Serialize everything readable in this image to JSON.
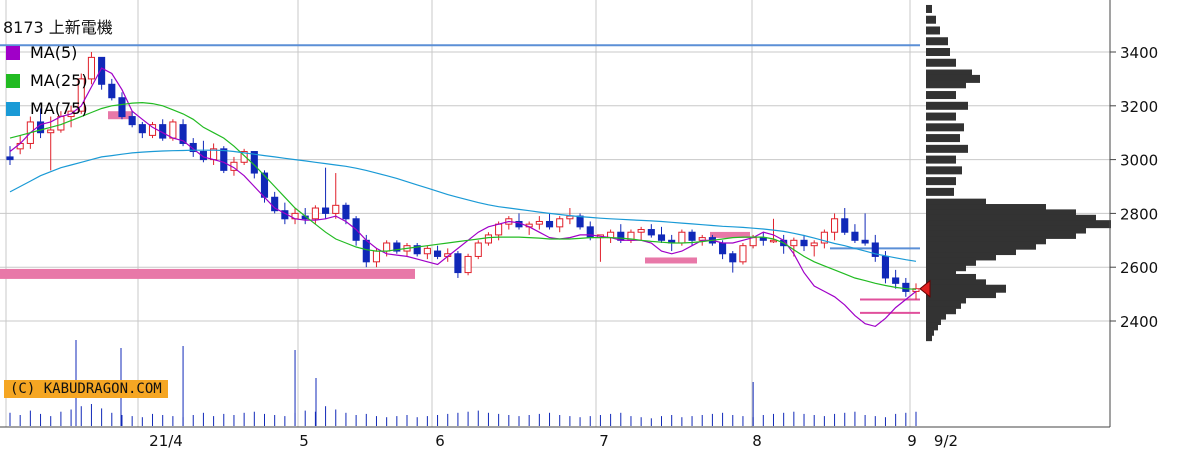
{
  "title": "8173 上新電機",
  "legend": [
    {
      "label": "MA(5)",
      "color": "#a000c8"
    },
    {
      "label": "MA(25)",
      "color": "#22bb22"
    },
    {
      "label": "MA(75)",
      "color": "#1a9ad6"
    }
  ],
  "copyright": "(C) KABUDRAGON.COM",
  "chart_data": {
    "type": "candlestick",
    "y_axis": {
      "ticks": [
        2400,
        2600,
        2800,
        3000,
        3200,
        3400
      ],
      "min": 2250,
      "max": 3600
    },
    "x_axis": {
      "ticks": [
        "21/4",
        "5",
        "6",
        "7",
        "8",
        "9",
        "9/2"
      ]
    },
    "colors": {
      "up": "#e0202a",
      "down": "#1028b8",
      "ma5": "#a000c8",
      "ma25": "#22bb22",
      "ma75": "#1a9ad6",
      "grid": "#c8c8c8",
      "volume": "#1028b8",
      "profile": "#333333"
    },
    "series": [
      {
        "name": "MA(5)",
        "values": [
          3030,
          3060,
          3100,
          3130,
          3140,
          3160,
          3170,
          3200,
          3270,
          3340,
          3320,
          3260,
          3180,
          3150,
          3120,
          3100,
          3080,
          3070,
          3040,
          3010,
          3000,
          2990,
          2970,
          2940,
          2900,
          2860,
          2820,
          2800,
          2780,
          2775,
          2775,
          2780,
          2790,
          2770,
          2740,
          2700,
          2670,
          2650,
          2645,
          2640,
          2630,
          2620,
          2610,
          2640,
          2670,
          2700,
          2730,
          2750,
          2760,
          2770,
          2765,
          2750,
          2730,
          2710,
          2705,
          2710,
          2720,
          2720,
          2715,
          2710,
          2700,
          2700,
          2700,
          2690,
          2660,
          2650,
          2660,
          2680,
          2700,
          2700,
          2690,
          2690,
          2700,
          2710,
          2730,
          2720,
          2700,
          2650,
          2580,
          2530,
          2510,
          2490,
          2460,
          2420,
          2390,
          2380,
          2410,
          2450,
          2480,
          2510
        ]
      },
      {
        "name": "MA(25)",
        "values": [
          3080,
          3090,
          3100,
          3110,
          3120,
          3130,
          3145,
          3160,
          3175,
          3190,
          3200,
          3205,
          3210,
          3212,
          3208,
          3200,
          3185,
          3170,
          3150,
          3120,
          3100,
          3080,
          3050,
          3015,
          2980,
          2940,
          2900,
          2860,
          2820,
          2790,
          2760,
          2730,
          2705,
          2690,
          2675,
          2665,
          2660,
          2660,
          2665,
          2670,
          2675,
          2680,
          2685,
          2690,
          2695,
          2700,
          2705,
          2710,
          2712,
          2712,
          2712,
          2710,
          2708,
          2705,
          2705,
          2705,
          2707,
          2710,
          2710,
          2710,
          2708,
          2705,
          2700,
          2696,
          2693,
          2690,
          2690,
          2692,
          2695,
          2700,
          2705,
          2710,
          2712,
          2712,
          2712,
          2705,
          2690,
          2665,
          2640,
          2620,
          2605,
          2590,
          2575,
          2560,
          2550,
          2540,
          2532,
          2525,
          2520,
          2518
        ]
      },
      {
        "name": "MA(75)",
        "values": [
          2880,
          2900,
          2920,
          2940,
          2955,
          2970,
          2980,
          2990,
          3000,
          3010,
          3015,
          3020,
          3025,
          3028,
          3030,
          3032,
          3033,
          3034,
          3035,
          3035,
          3035,
          3034,
          3030,
          3025,
          3020,
          3015,
          3010,
          3005,
          3000,
          2995,
          2990,
          2985,
          2980,
          2975,
          2968,
          2960,
          2950,
          2940,
          2930,
          2918,
          2906,
          2894,
          2882,
          2870,
          2860,
          2850,
          2840,
          2832,
          2825,
          2820,
          2815,
          2810,
          2805,
          2800,
          2796,
          2792,
          2788,
          2785,
          2782,
          2780,
          2778,
          2776,
          2774,
          2772,
          2770,
          2767,
          2764,
          2761,
          2758,
          2755,
          2752,
          2750,
          2748,
          2745,
          2742,
          2738,
          2733,
          2726,
          2718,
          2708,
          2698,
          2688,
          2680,
          2670,
          2660,
          2650,
          2642,
          2635,
          2628,
          2622
        ]
      }
    ],
    "ohlc": [
      [
        3010,
        3050,
        2980,
        3000
      ],
      [
        3040,
        3090,
        3020,
        3060
      ],
      [
        3060,
        3160,
        3040,
        3140
      ],
      [
        3140,
        3190,
        3080,
        3100
      ],
      [
        3100,
        3160,
        2960,
        3110
      ],
      [
        3110,
        3180,
        3100,
        3160
      ],
      [
        3160,
        3200,
        3120,
        3180
      ],
      [
        3180,
        3320,
        3170,
        3300
      ],
      [
        3300,
        3400,
        3280,
        3380
      ],
      [
        3380,
        3380,
        3260,
        3280
      ],
      [
        3280,
        3300,
        3220,
        3230
      ],
      [
        3230,
        3250,
        3150,
        3160
      ],
      [
        3160,
        3180,
        3120,
        3130
      ],
      [
        3130,
        3140,
        3080,
        3100
      ],
      [
        3090,
        3140,
        3080,
        3130
      ],
      [
        3130,
        3150,
        3070,
        3080
      ],
      [
        3080,
        3150,
        3070,
        3140
      ],
      [
        3130,
        3150,
        3050,
        3060
      ],
      [
        3060,
        3080,
        3010,
        3030
      ],
      [
        3030,
        3070,
        2990,
        3000
      ],
      [
        3000,
        3060,
        2980,
        3040
      ],
      [
        3040,
        3050,
        2950,
        2960
      ],
      [
        2960,
        3010,
        2940,
        2990
      ],
      [
        2990,
        3040,
        2980,
        3030
      ],
      [
        3030,
        3030,
        2930,
        2950
      ],
      [
        2950,
        2960,
        2840,
        2860
      ],
      [
        2860,
        2880,
        2800,
        2810
      ],
      [
        2810,
        2840,
        2760,
        2780
      ],
      [
        2780,
        2820,
        2760,
        2800
      ],
      [
        2790,
        2820,
        2760,
        2780
      ],
      [
        2780,
        2830,
        2760,
        2820
      ],
      [
        2820,
        2970,
        2780,
        2800
      ],
      [
        2800,
        2950,
        2780,
        2830
      ],
      [
        2830,
        2840,
        2760,
        2780
      ],
      [
        2780,
        2790,
        2680,
        2700
      ],
      [
        2700,
        2720,
        2600,
        2620
      ],
      [
        2620,
        2670,
        2600,
        2660
      ],
      [
        2660,
        2700,
        2640,
        2690
      ],
      [
        2690,
        2700,
        2650,
        2660
      ],
      [
        2660,
        2690,
        2640,
        2680
      ],
      [
        2680,
        2690,
        2640,
        2650
      ],
      [
        2650,
        2680,
        2630,
        2670
      ],
      [
        2660,
        2680,
        2630,
        2640
      ],
      [
        2640,
        2670,
        2620,
        2650
      ],
      [
        2650,
        2660,
        2560,
        2580
      ],
      [
        2580,
        2650,
        2570,
        2640
      ],
      [
        2640,
        2700,
        2630,
        2690
      ],
      [
        2690,
        2730,
        2680,
        2720
      ],
      [
        2720,
        2770,
        2700,
        2760
      ],
      [
        2760,
        2790,
        2740,
        2780
      ],
      [
        2770,
        2800,
        2740,
        2750
      ],
      [
        2750,
        2770,
        2720,
        2760
      ],
      [
        2760,
        2790,
        2740,
        2770
      ],
      [
        2770,
        2800,
        2740,
        2750
      ],
      [
        2750,
        2790,
        2730,
        2780
      ],
      [
        2780,
        2820,
        2760,
        2790
      ],
      [
        2790,
        2800,
        2740,
        2750
      ],
      [
        2750,
        2770,
        2700,
        2710
      ],
      [
        2710,
        2720,
        2620,
        2720
      ],
      [
        2710,
        2740,
        2690,
        2730
      ],
      [
        2730,
        2760,
        2690,
        2700
      ],
      [
        2700,
        2740,
        2690,
        2730
      ],
      [
        2730,
        2750,
        2700,
        2740
      ],
      [
        2740,
        2760,
        2710,
        2720
      ],
      [
        2720,
        2750,
        2690,
        2700
      ],
      [
        2700,
        2720,
        2660,
        2690
      ],
      [
        2690,
        2740,
        2680,
        2730
      ],
      [
        2730,
        2740,
        2680,
        2700
      ],
      [
        2700,
        2720,
        2680,
        2710
      ],
      [
        2710,
        2720,
        2680,
        2690
      ],
      [
        2690,
        2700,
        2630,
        2650
      ],
      [
        2650,
        2660,
        2580,
        2620
      ],
      [
        2620,
        2690,
        2610,
        2680
      ],
      [
        2680,
        2720,
        2670,
        2710
      ],
      [
        2710,
        2730,
        2680,
        2700
      ],
      [
        2700,
        2780,
        2690,
        2700
      ],
      [
        2700,
        2720,
        2650,
        2680
      ],
      [
        2680,
        2710,
        2640,
        2700
      ],
      [
        2700,
        2720,
        2660,
        2680
      ],
      [
        2680,
        2700,
        2640,
        2690
      ],
      [
        2690,
        2740,
        2670,
        2730
      ],
      [
        2730,
        2800,
        2700,
        2780
      ],
      [
        2780,
        2820,
        2720,
        2730
      ],
      [
        2730,
        2760,
        2690,
        2700
      ],
      [
        2700,
        2800,
        2680,
        2690
      ],
      [
        2690,
        2720,
        2620,
        2640
      ],
      [
        2640,
        2660,
        2540,
        2560
      ],
      [
        2560,
        2590,
        2520,
        2540
      ],
      [
        2540,
        2560,
        2490,
        2510
      ],
      [
        2510,
        2540,
        2480,
        2520
      ]
    ],
    "volume": [
      12,
      10,
      14,
      11,
      9,
      13,
      15,
      18,
      20,
      16,
      12,
      10,
      9,
      8,
      11,
      10,
      9,
      8,
      10,
      12,
      9,
      11,
      10,
      12,
      13,
      11,
      10,
      9,
      12,
      14,
      13,
      18,
      15,
      12,
      10,
      11,
      9,
      8,
      9,
      10,
      8,
      9,
      10,
      11,
      12,
      13,
      14,
      12,
      11,
      10,
      9,
      10,
      11,
      12,
      10,
      9,
      8,
      9,
      10,
      11,
      12,
      9,
      8,
      7,
      9,
      10,
      8,
      9,
      10,
      11,
      12,
      10,
      9,
      8,
      10,
      11,
      12,
      13,
      11,
      10,
      9,
      11,
      12,
      13,
      10,
      9,
      8,
      11,
      12,
      13
    ],
    "volume_spikes": [
      {
        "index": 17,
        "value": 40
      },
      {
        "index": 28,
        "value": 38
      },
      {
        "index": 73,
        "value": 22
      }
    ],
    "horizontal_lines": [
      {
        "value": 3425,
        "color": "#5b8fd6"
      },
      {
        "value": 2670,
        "color": "#5b8fd6"
      },
      {
        "value": 2480,
        "color": "#e0509c"
      },
      {
        "value": 2430,
        "color": "#e0509c"
      }
    ],
    "pink_bands": [
      {
        "value": 2575
      },
      {
        "value": 3165
      }
    ],
    "current_price": 2520,
    "volume_profile": [
      [
        3560,
        6
      ],
      [
        3520,
        10
      ],
      [
        3480,
        14
      ],
      [
        3440,
        22
      ],
      [
        3400,
        24
      ],
      [
        3360,
        30
      ],
      [
        3320,
        46
      ],
      [
        3300,
        54
      ],
      [
        3280,
        40
      ],
      [
        3240,
        30
      ],
      [
        3200,
        42
      ],
      [
        3160,
        30
      ],
      [
        3120,
        38
      ],
      [
        3080,
        34
      ],
      [
        3040,
        42
      ],
      [
        3000,
        30
      ],
      [
        2960,
        36
      ],
      [
        2920,
        30
      ],
      [
        2880,
        28
      ],
      [
        2840,
        60
      ],
      [
        2820,
        120
      ],
      [
        2800,
        150
      ],
      [
        2780,
        170
      ],
      [
        2760,
        185
      ],
      [
        2740,
        160
      ],
      [
        2720,
        150
      ],
      [
        2700,
        120
      ],
      [
        2680,
        110
      ],
      [
        2660,
        90
      ],
      [
        2640,
        70
      ],
      [
        2620,
        50
      ],
      [
        2600,
        40
      ],
      [
        2580,
        30
      ],
      [
        2560,
        50
      ],
      [
        2540,
        60
      ],
      [
        2520,
        80
      ],
      [
        2500,
        70
      ],
      [
        2480,
        40
      ],
      [
        2460,
        35
      ],
      [
        2440,
        30
      ],
      [
        2420,
        20
      ],
      [
        2400,
        15
      ],
      [
        2380,
        12
      ],
      [
        2360,
        8
      ],
      [
        2340,
        6
      ]
    ]
  }
}
